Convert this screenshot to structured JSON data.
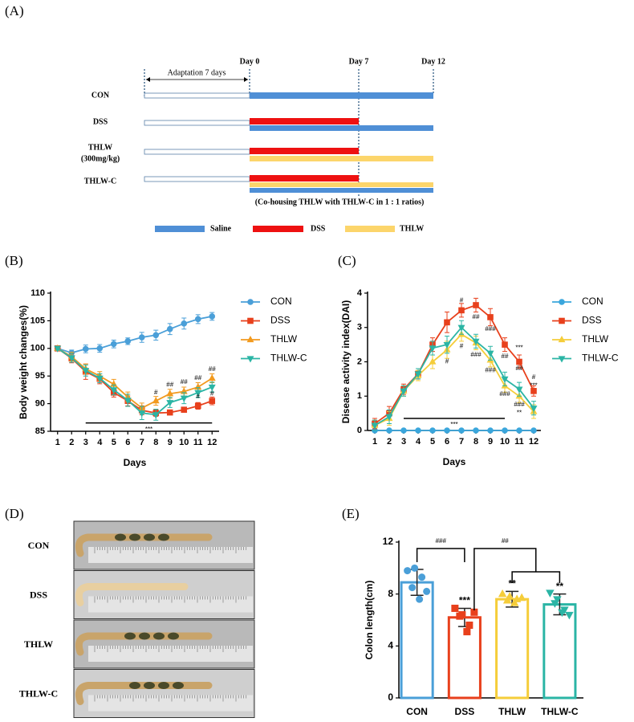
{
  "panel_a": {
    "label": "(A)",
    "adaptation": "Adaptation 7 days",
    "days": [
      "Day 0",
      "Day 7",
      "Day 12"
    ],
    "rows": [
      {
        "label": "CON"
      },
      {
        "label": "DSS"
      },
      {
        "label": "THLW",
        "sublabel": "(300mg/kg)"
      },
      {
        "label": "THLW-C"
      }
    ],
    "note": "(Co-housing THLW with THLW-C in 1 : 1 ratios)",
    "legend": [
      "Saline",
      "DSS",
      "THLW"
    ]
  },
  "chart_data": [
    {
      "type": "line",
      "label": "(B)",
      "ylabel": "Body weight changes(%)",
      "xlabel": "Days",
      "x": [
        1,
        2,
        3,
        4,
        5,
        6,
        7,
        8,
        9,
        10,
        11,
        12
      ],
      "xlim": [
        0.5,
        12.5
      ],
      "xticks": [
        1,
        2,
        3,
        4,
        5,
        6,
        7,
        8,
        9,
        10,
        11,
        12
      ],
      "ylim": [
        85,
        110
      ],
      "yticks": [
        85,
        90,
        95,
        100,
        105,
        110
      ],
      "legend": "right",
      "series": [
        {
          "name": "CON",
          "color": "#4a9fd8",
          "marker": "circle",
          "values": [
            100,
            99.2,
            99.9,
            100,
            100.8,
            101.3,
            102,
            102.4,
            103.5,
            104.5,
            105.3,
            105.8
          ],
          "errors": [
            0.3,
            0.5,
            0.7,
            0.7,
            0.7,
            0.6,
            0.9,
            0.9,
            1.0,
            1.0,
            0.8,
            0.7
          ]
        },
        {
          "name": "DSS",
          "color": "#e8401c",
          "marker": "square",
          "values": [
            100,
            98.2,
            95.8,
            94.5,
            92,
            90.5,
            88.8,
            88.3,
            88.4,
            88.9,
            89.6,
            90.5
          ],
          "errors": [
            0.3,
            0.8,
            1.4,
            0.9,
            0.8,
            0.9,
            0.8,
            0.6,
            0.4,
            0.4,
            0.6,
            0.7
          ]
        },
        {
          "name": "THLW",
          "color": "#f29a1f",
          "marker": "triangle",
          "values": [
            100,
            98.5,
            96.3,
            95,
            93.5,
            91.2,
            89.2,
            90.5,
            91.8,
            92.2,
            93,
            94.6
          ],
          "errors": [
            0.3,
            0.8,
            0.9,
            0.8,
            0.9,
            0.9,
            0.9,
            0.8,
            0.8,
            0.8,
            0.8,
            0.8
          ]
        },
        {
          "name": "THLW-C",
          "color": "#2bb5a5",
          "marker": "triangle-down",
          "values": [
            100,
            98.3,
            96,
            94.6,
            92.5,
            90.6,
            88.3,
            88,
            90.2,
            91,
            92,
            93
          ],
          "errors": [
            0.3,
            0.8,
            1.0,
            0.8,
            0.9,
            1.1,
            1.2,
            1.0,
            0.9,
            1.0,
            0.9,
            0.9
          ]
        }
      ],
      "annotations": [
        {
          "x": 8,
          "y": 92,
          "text": "#"
        },
        {
          "x": 9,
          "y": 93.4,
          "text": "##"
        },
        {
          "x": 10,
          "y": 93.9,
          "text": "##"
        },
        {
          "x": 11,
          "y": 94.6,
          "text": "##"
        },
        {
          "x": 12,
          "y": 96.2,
          "text": "##"
        },
        {
          "x": 11,
          "y": 91.3,
          "text": "#"
        },
        {
          "x": 12,
          "y": 91.8,
          "text": "#"
        }
      ],
      "sig_line": {
        "from": 3,
        "to": 12,
        "y": 86.5,
        "text": "***"
      }
    },
    {
      "type": "line",
      "label": "(C)",
      "ylabel": "Disease activity index(DAI)",
      "xlabel": "Days",
      "x": [
        1,
        2,
        3,
        4,
        5,
        6,
        7,
        8,
        9,
        10,
        11,
        12
      ],
      "xlim": [
        0.5,
        12.5
      ],
      "xticks": [
        1,
        2,
        3,
        4,
        5,
        6,
        7,
        8,
        9,
        10,
        11,
        12
      ],
      "ylim": [
        0,
        4
      ],
      "yticks": [
        0,
        1,
        2,
        3,
        4
      ],
      "legend": "right",
      "series": [
        {
          "name": "CON",
          "color": "#3aa6dc",
          "marker": "circle",
          "values": [
            0,
            0,
            0,
            0,
            0,
            0,
            0,
            0,
            0,
            0,
            0,
            0
          ],
          "errors": [
            0,
            0,
            0,
            0,
            0,
            0,
            0,
            0,
            0,
            0,
            0,
            0
          ]
        },
        {
          "name": "DSS",
          "color": "#e8401c",
          "marker": "square",
          "values": [
            0.2,
            0.5,
            1.2,
            1.65,
            2.5,
            3.15,
            3.5,
            3.65,
            3.3,
            2.5,
            2.0,
            1.15
          ],
          "errors": [
            0.15,
            0.2,
            0.15,
            0.15,
            0.2,
            0.3,
            0.2,
            0.2,
            0.25,
            0.2,
            0.2,
            0.15
          ]
        },
        {
          "name": "THLW",
          "color": "#f5cd3a",
          "marker": "triangle",
          "values": [
            0.15,
            0.35,
            1.15,
            1.6,
            2.0,
            2.35,
            2.8,
            2.55,
            2.05,
            1.3,
            1.0,
            0.55
          ],
          "errors": [
            0.15,
            0.2,
            0.15,
            0.15,
            0.2,
            0.25,
            0.2,
            0.2,
            0.2,
            0.2,
            0.2,
            0.2
          ]
        },
        {
          "name": "THLW-C",
          "color": "#2bb5a5",
          "marker": "triangle-down",
          "values": [
            0.15,
            0.4,
            1.15,
            1.65,
            2.4,
            2.5,
            3.0,
            2.6,
            2.25,
            1.5,
            1.2,
            0.65
          ],
          "errors": [
            0.15,
            0.2,
            0.15,
            0.15,
            0.2,
            0.25,
            0.2,
            0.2,
            0.2,
            0.2,
            0.2,
            0.2
          ]
        }
      ],
      "annotations": [
        {
          "x": 7,
          "y": 3.78,
          "text": "#"
        },
        {
          "x": 8,
          "y": 3.3,
          "text": "##"
        },
        {
          "x": 9,
          "y": 2.95,
          "text": "###"
        },
        {
          "x": 10,
          "y": 2.15,
          "text": "##"
        },
        {
          "x": 11,
          "y": 2.4,
          "text": "***"
        },
        {
          "x": 11,
          "y": 1.8,
          "text": "##"
        },
        {
          "x": 12,
          "y": 1.55,
          "text": "#"
        },
        {
          "x": 12,
          "y": 1.3,
          "text": "***"
        },
        {
          "x": 6,
          "y": 2.0,
          "text": "#"
        },
        {
          "x": 7,
          "y": 2.45,
          "text": "#"
        },
        {
          "x": 8,
          "y": 2.2,
          "text": "###"
        },
        {
          "x": 9,
          "y": 1.75,
          "text": "###"
        },
        {
          "x": 10,
          "y": 1.05,
          "text": "###"
        },
        {
          "x": 11,
          "y": 0.75,
          "text": "###"
        },
        {
          "x": 11,
          "y": 0.5,
          "text": "**"
        }
      ],
      "sig_line": {
        "from": 3,
        "to": 10,
        "y": 0.35,
        "text": "***"
      }
    },
    {
      "type": "bar",
      "label": "(E)",
      "ylabel": "Colon length(cm)",
      "categories": [
        "CON",
        "DSS",
        "THLW",
        "THLW-C"
      ],
      "values": [
        8.9,
        6.2,
        7.6,
        7.2
      ],
      "errors": [
        1.0,
        0.7,
        0.6,
        0.8
      ],
      "colors": [
        "#4a9fd8",
        "#e8401c",
        "#f5cd3a",
        "#2bb5a5"
      ],
      "markers": [
        "circle",
        "square",
        "triangle",
        "triangle-down"
      ],
      "points": [
        [
          9.8,
          10,
          9.3,
          8.5,
          7.6,
          8.2
        ],
        [
          6.9,
          6.4,
          5.6,
          6.3,
          5.1,
          6.6
        ],
        [
          8.0,
          7.8,
          7.6,
          7.5,
          7.3,
          7.7
        ],
        [
          8.1,
          7.6,
          6.8,
          7.3,
          6.6,
          6.4
        ]
      ],
      "significance": [
        null,
        "***",
        "**",
        "**"
      ],
      "brackets": [
        {
          "from": "CON",
          "to": [
            "DSS"
          ],
          "label": "###"
        },
        {
          "from": "DSS",
          "to": [
            "THLW",
            "THLW-C"
          ],
          "label": "##"
        }
      ],
      "ylim": [
        0,
        12
      ],
      "yticks": [
        0,
        4,
        8,
        12
      ]
    }
  ],
  "panel_d": {
    "label": "(D)",
    "rows": [
      "CON",
      "DSS",
      "THLW",
      "THLW-C"
    ]
  }
}
